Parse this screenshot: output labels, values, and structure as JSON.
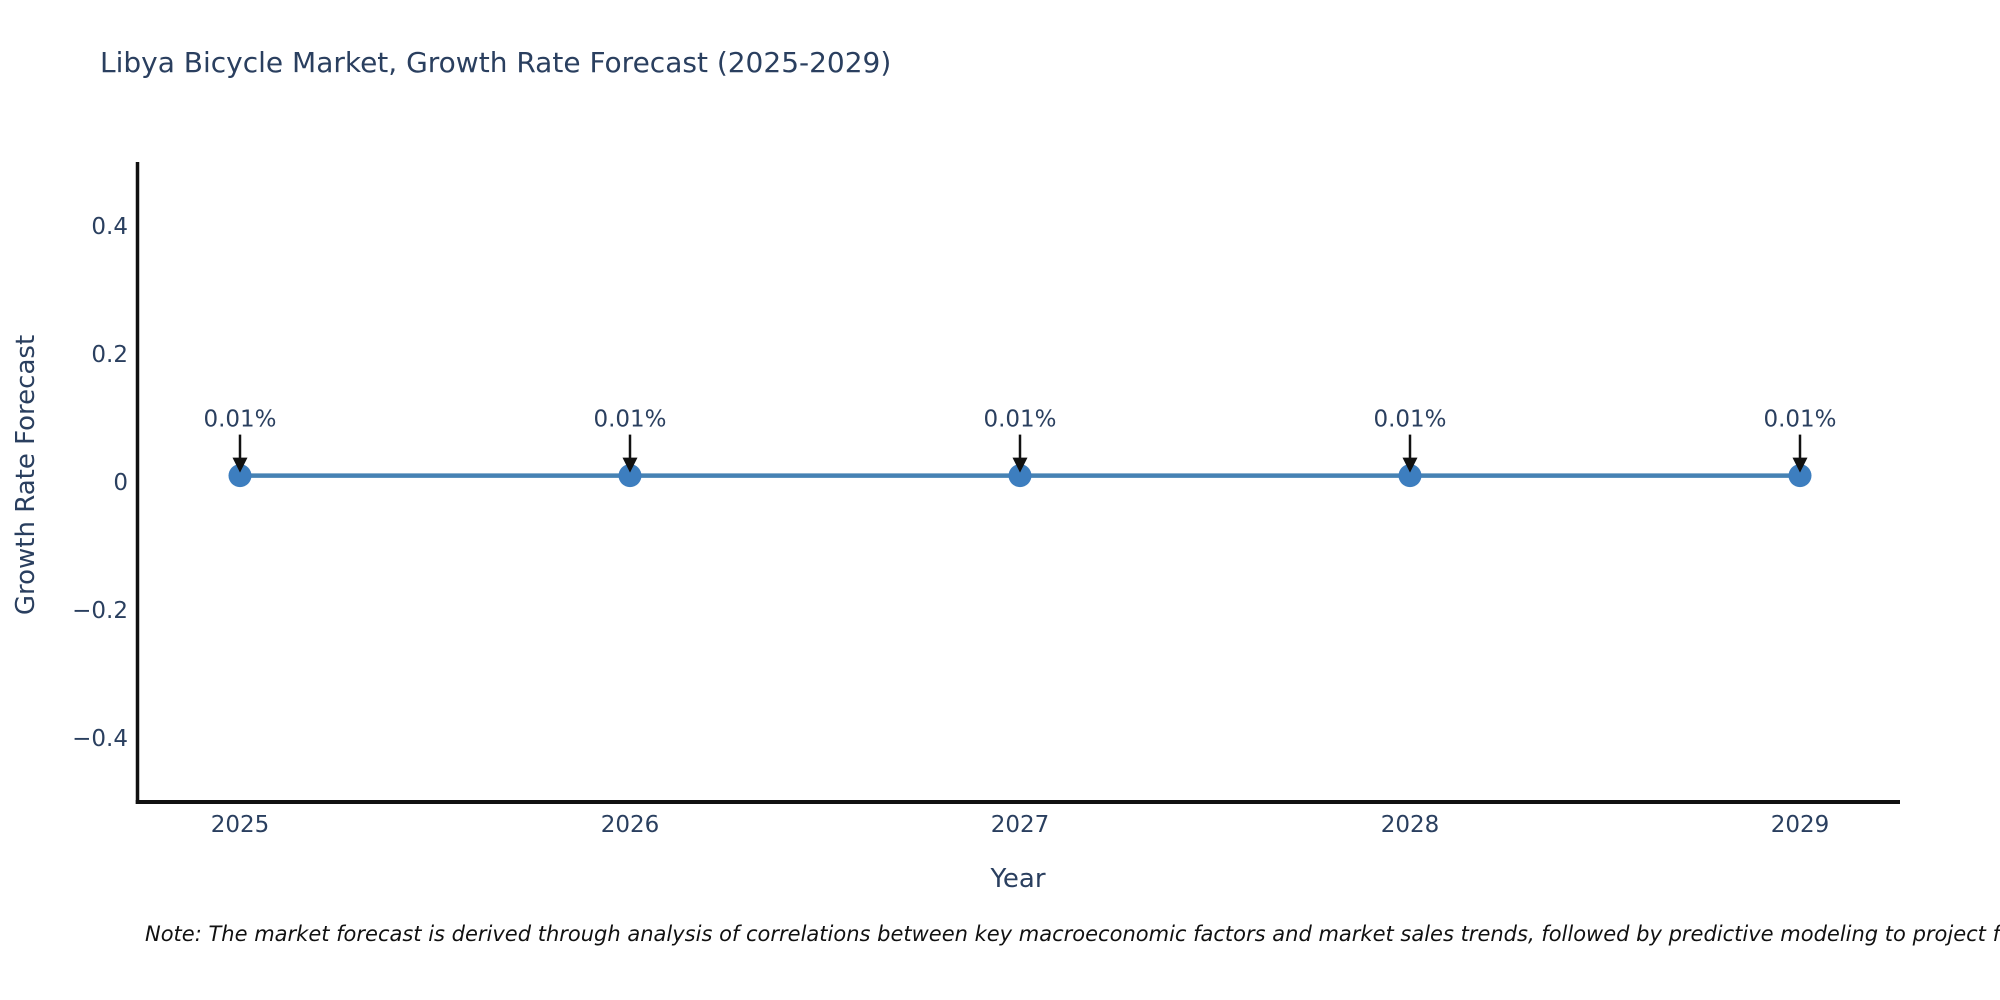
{
  "title": "Libya Bicycle Market, Growth Rate Forecast (2025-2029)",
  "note": "Note: The market forecast is derived through analysis of correlations between key macroeconomic factors and market sales trends, followed by predictive modeling to project future sa",
  "chart_data": {
    "type": "line",
    "title": "Libya Bicycle Market, Growth Rate Forecast (2025-2029)",
    "categories": [
      "2025",
      "2026",
      "2027",
      "2028",
      "2029"
    ],
    "series": [
      {
        "name": "Growth Rate Forecast",
        "values": [
          0.01,
          0.01,
          0.01,
          0.01,
          0.01
        ]
      }
    ],
    "point_labels": [
      "0.01%",
      "0.01%",
      "0.01%",
      "0.01%",
      "0.01%"
    ],
    "xlabel": "Year",
    "ylabel": "Growth Rate Forecast",
    "yticks": [
      0.4,
      0.2,
      0,
      -0.2,
      -0.4
    ],
    "ytick_labels": [
      "0.4",
      "0.2",
      "0",
      "−0.2",
      "−0.4"
    ],
    "ylim": [
      -0.5,
      0.5
    ],
    "grid": false,
    "legend": false,
    "colors": {
      "line": "#4682b4",
      "marker": "#3d7ebf",
      "axis": "#111111",
      "text": "#2a3f5f",
      "arrow": "#111111",
      "note_text": "#111111"
    }
  }
}
